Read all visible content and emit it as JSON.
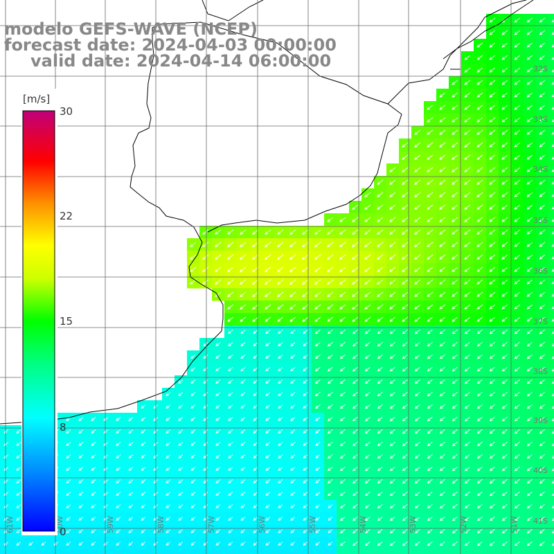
{
  "header": {
    "line1": "modelo GEFS-WAVE (NCEP)",
    "line2": "forecast date: 2024-04-03 00:00:00",
    "line3": "valid date: 2024-04-14 06:00:00"
  },
  "colorbar": {
    "units": "[m/s]",
    "ticks": [
      "30",
      "22",
      "15",
      "8",
      "0"
    ],
    "min": 0,
    "max": 30,
    "colors": [
      "#0000ff",
      "#00aaff",
      "#00ffff",
      "#00ff00",
      "#ffff00",
      "#ff8000",
      "#ff0000",
      "#c0007a"
    ]
  },
  "map": {
    "lat_labels": [
      "32S",
      "33S",
      "34S",
      "35S",
      "36S",
      "37S",
      "38S",
      "39S",
      "40S",
      "41S"
    ],
    "lon_labels": [
      "61W",
      "60W",
      "59W",
      "58W",
      "57W",
      "56W",
      "55W",
      "54W",
      "53W",
      "52W",
      "51W"
    ],
    "lat_range": [
      "31S",
      "41.5S"
    ],
    "lon_range": [
      "61W",
      "50W"
    ],
    "wind_direction": "from northeast",
    "land_color": "#ffffff",
    "grid_color": "#666666"
  }
}
